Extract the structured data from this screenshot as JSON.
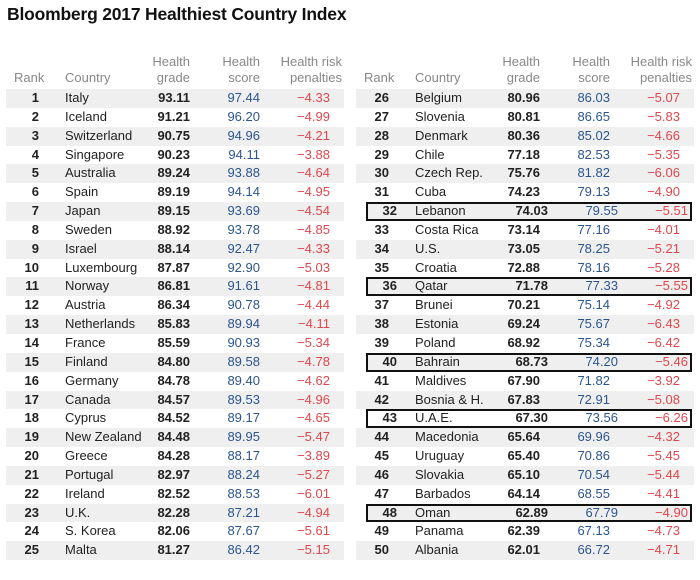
{
  "title": "Bloomberg 2017 Healthiest Country Index",
  "colors": {
    "score": "#2b5590",
    "penalty": "#e0474c",
    "shade": "#efefef"
  },
  "chart_data": {
    "type": "table",
    "title": "Bloomberg 2017 Healthiest Country Index",
    "columns": [
      "Rank",
      "Country",
      "Health grade",
      "Health score",
      "Health risk penalties"
    ],
    "highlighted_ranks": [
      32,
      36,
      40,
      43,
      48
    ],
    "rows": [
      [
        "1",
        "Italy",
        "93.11",
        "97.44",
        "−4.33"
      ],
      [
        "2",
        "Iceland",
        "91.21",
        "96.20",
        "−4.99"
      ],
      [
        "3",
        "Switzerland",
        "90.75",
        "94.96",
        "−4.21"
      ],
      [
        "4",
        "Singapore",
        "90.23",
        "94.11",
        "−3.88"
      ],
      [
        "5",
        "Australia",
        "89.24",
        "93.88",
        "−4.64"
      ],
      [
        "6",
        "Spain",
        "89.19",
        "94.14",
        "−4.95"
      ],
      [
        "7",
        "Japan",
        "89.15",
        "93.69",
        "−4.54"
      ],
      [
        "8",
        "Sweden",
        "88.92",
        "93.78",
        "−4.85"
      ],
      [
        "9",
        "Israel",
        "88.14",
        "92.47",
        "−4.33"
      ],
      [
        "10",
        "Luxembourg",
        "87.87",
        "92.90",
        "−5.03"
      ],
      [
        "11",
        "Norway",
        "86.81",
        "91.61",
        "−4.81"
      ],
      [
        "12",
        "Austria",
        "86.34",
        "90.78",
        "−4.44"
      ],
      [
        "13",
        "Netherlands",
        "85.83",
        "89.94",
        "−4.11"
      ],
      [
        "14",
        "France",
        "85.59",
        "90.93",
        "−5.34"
      ],
      [
        "15",
        "Finland",
        "84.80",
        "89.58",
        "−4.78"
      ],
      [
        "16",
        "Germany",
        "84.78",
        "89.40",
        "−4.62"
      ],
      [
        "17",
        "Canada",
        "84.57",
        "89.53",
        "−4.96"
      ],
      [
        "18",
        "Cyprus",
        "84.52",
        "89.17",
        "−4.65"
      ],
      [
        "19",
        "New Zealand",
        "84.48",
        "89.95",
        "−5.47"
      ],
      [
        "20",
        "Greece",
        "84.28",
        "88.17",
        "−3.89"
      ],
      [
        "21",
        "Portugal",
        "82.97",
        "88.24",
        "−5.27"
      ],
      [
        "22",
        "Ireland",
        "82.52",
        "88.53",
        "−6.01"
      ],
      [
        "23",
        "U.K.",
        "82.28",
        "87.21",
        "−4.94"
      ],
      [
        "24",
        "S. Korea",
        "82.06",
        "87.67",
        "−5.61"
      ],
      [
        "25",
        "Malta",
        "81.27",
        "86.42",
        "−5.15"
      ],
      [
        "26",
        "Belgium",
        "80.96",
        "86.03",
        "−5.07"
      ],
      [
        "27",
        "Slovenia",
        "80.81",
        "86.65",
        "−5.83"
      ],
      [
        "28",
        "Denmark",
        "80.36",
        "85.02",
        "−4.66"
      ],
      [
        "29",
        "Chile",
        "77.18",
        "82.53",
        "−5.35"
      ],
      [
        "30",
        "Czech Rep.",
        "75.76",
        "81.82",
        "−6.06"
      ],
      [
        "31",
        "Cuba",
        "74.23",
        "79.13",
        "−4.90"
      ],
      [
        "32",
        "Lebanon",
        "74.03",
        "79.55",
        "−5.51"
      ],
      [
        "33",
        "Costa Rica",
        "73.14",
        "77.16",
        "−4.01"
      ],
      [
        "34",
        "U.S.",
        "73.05",
        "78.25",
        "−5.21"
      ],
      [
        "35",
        "Croatia",
        "72.88",
        "78.16",
        "−5.28"
      ],
      [
        "36",
        "Qatar",
        "71.78",
        "77.33",
        "−5.55"
      ],
      [
        "37",
        "Brunei",
        "70.21",
        "75.14",
        "−4.92"
      ],
      [
        "38",
        "Estonia",
        "69.24",
        "75.67",
        "−6.43"
      ],
      [
        "39",
        "Poland",
        "68.92",
        "75.34",
        "−6.42"
      ],
      [
        "40",
        "Bahrain",
        "68.73",
        "74.20",
        "−5.46"
      ],
      [
        "41",
        "Maldives",
        "67.90",
        "71.82",
        "−3.92"
      ],
      [
        "42",
        "Bosnia & H.",
        "67.83",
        "72.91",
        "−5.08"
      ],
      [
        "43",
        "U.A.E.",
        "67.30",
        "73.56",
        "−6.26"
      ],
      [
        "44",
        "Macedonia",
        "65.64",
        "69.96",
        "−4.32"
      ],
      [
        "45",
        "Uruguay",
        "65.40",
        "70.86",
        "−5.45"
      ],
      [
        "46",
        "Slovakia",
        "65.10",
        "70.54",
        "−5.44"
      ],
      [
        "47",
        "Barbados",
        "64.14",
        "68.55",
        "−4.41"
      ],
      [
        "48",
        "Oman",
        "62.89",
        "67.79",
        "−4.90"
      ],
      [
        "49",
        "Panama",
        "62.39",
        "67.13",
        "−4.73"
      ],
      [
        "50",
        "Albania",
        "62.01",
        "66.72",
        "−4.71"
      ]
    ]
  }
}
